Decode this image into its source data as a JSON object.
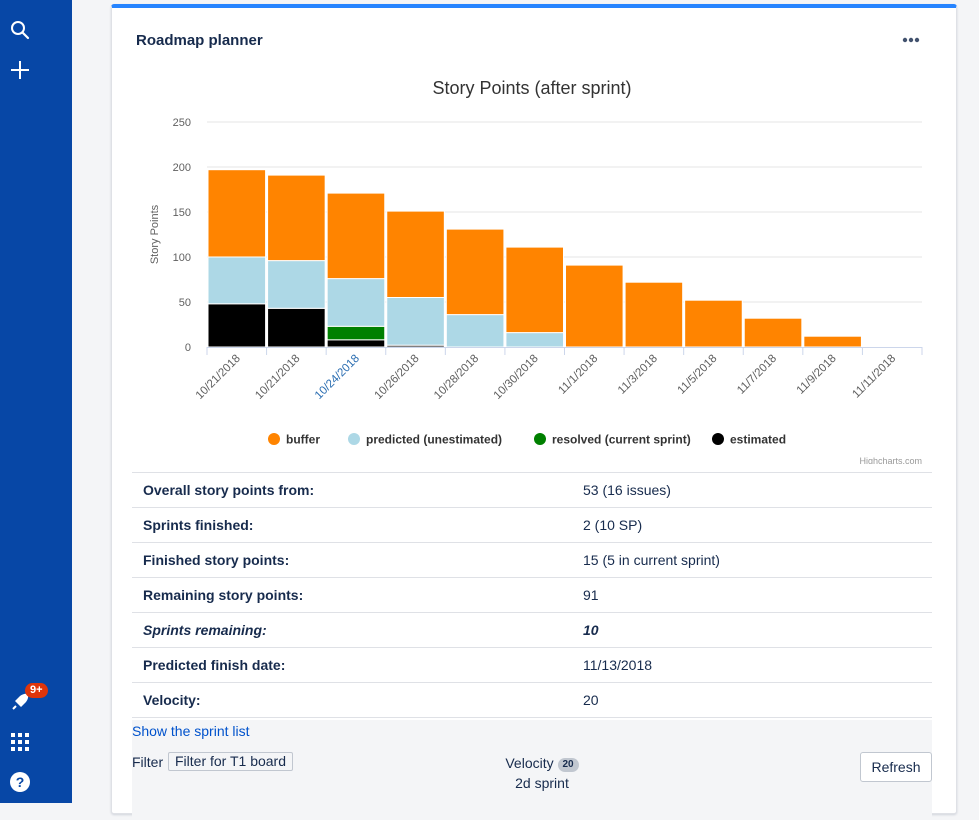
{
  "panel": {
    "title": "Roadmap planner"
  },
  "sidebar": {
    "notification_count": "9+"
  },
  "chart_data": {
    "type": "bar",
    "title": "Story Points (after sprint)",
    "ylabel": "Story Points",
    "xlabel": "",
    "ylim": [
      0,
      250
    ],
    "yticks": [
      0,
      50,
      100,
      150,
      200,
      250
    ],
    "grid": true,
    "stacked": true,
    "legend_position": "bottom",
    "credits": "Highcharts.com",
    "categories": [
      "10/21/2018",
      "10/21/2018",
      "10/24/2018",
      "10/26/2018",
      "10/28/2018",
      "10/30/2018",
      "11/1/2018",
      "11/3/2018",
      "11/5/2018",
      "11/7/2018",
      "11/9/2018",
      "11/11/2018"
    ],
    "highlighted_category_index": 2,
    "highlight_color": "#2a6db1",
    "series": [
      {
        "name": "buffer",
        "color": "#ff8400",
        "values": [
          97,
          95,
          95,
          96,
          95,
          95,
          91,
          72,
          52,
          32,
          12,
          0
        ]
      },
      {
        "name": "predicted (unestimated)",
        "color": "#add8e6",
        "values": [
          52,
          53,
          53,
          53,
          36,
          16,
          0,
          0,
          0,
          0,
          0,
          0
        ]
      },
      {
        "name": "resolved (current sprint)",
        "color": "#008000",
        "values": [
          0,
          0,
          15,
          0,
          0,
          0,
          0,
          0,
          0,
          0,
          0,
          0
        ]
      },
      {
        "name": "estimated",
        "color": "#000000",
        "values": [
          48,
          43,
          8,
          2,
          0,
          0,
          0,
          0,
          0,
          0,
          0,
          0
        ]
      }
    ]
  },
  "stats": [
    {
      "label": "Overall story points from:",
      "value": "53 (16 issues)",
      "emphasis": false
    },
    {
      "label": "Sprints finished:",
      "value": "2 (10 SP)",
      "emphasis": false
    },
    {
      "label": "Finished story points:",
      "value": "15 (5 in current sprint)",
      "emphasis": false
    },
    {
      "label": "Remaining story points:",
      "value": "91",
      "emphasis": false
    },
    {
      "label": "Sprints remaining:",
      "value": "10",
      "emphasis": true
    },
    {
      "label": "Predicted finish date:",
      "value": "11/13/2018",
      "emphasis": false
    },
    {
      "label": "Velocity:",
      "value": "20",
      "emphasis": false
    }
  ],
  "show_sprints_link": "Show the sprint list",
  "footer": {
    "filter_label": "Filter",
    "filter_button": "Filter for T1 board",
    "velocity_label": "Velocity",
    "velocity_value": "20",
    "sprint_length": "2d sprint",
    "refresh_label": "Refresh"
  }
}
